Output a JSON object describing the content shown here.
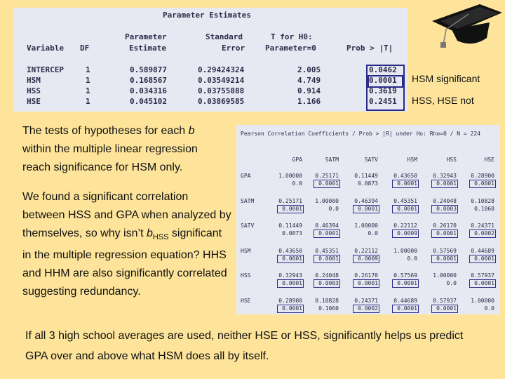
{
  "param": {
    "title": "Parameter Estimates",
    "headers": {
      "variable": "Variable",
      "df": "DF",
      "est1": "Parameter",
      "est2": "Estimate",
      "se1": "Standard",
      "se2": "Error",
      "t1": "T for H0:",
      "t2": "Parameter=0",
      "p": "Prob > |T|"
    },
    "rows": [
      {
        "var": "INTERCEP",
        "df": "1",
        "est": "0.589877",
        "se": "0.29424324",
        "t": "2.005",
        "p": "0.0462"
      },
      {
        "var": "HSM",
        "df": "1",
        "est": "0.168567",
        "se": "0.03549214",
        "t": "4.749",
        "p": "0.0001"
      },
      {
        "var": "HSS",
        "df": "1",
        "est": "0.034316",
        "se": "0.03755888",
        "t": "0.914",
        "p": "0.3619"
      },
      {
        "var": "HSE",
        "df": "1",
        "est": "0.045102",
        "se": "0.03869585",
        "t": "1.166",
        "p": "0.2451"
      }
    ]
  },
  "notes": {
    "hsm": "HSM significant",
    "hss": "HSS, HSE not"
  },
  "para1": {
    "pre": "The tests of hypotheses for each ",
    "b": "b",
    "post": " within the multiple linear regression reach significance for HSM only."
  },
  "para2": {
    "pre": "We found a significant correlation between HSS and GPA when analyzed by themselves, so why isn’t ",
    "b": "b",
    "sub": "HSS",
    "post": " significant in the multiple regression equation?  HHS and HHM are also significantly correlated suggesting redundancy."
  },
  "corr": {
    "title": "Pearson Correlation Coefficients / Prob > |R| under Ho: Rho=0 / N = 224",
    "cols": [
      "GPA",
      "SATM",
      "SATV",
      "HSM",
      "HSS",
      "HSE"
    ],
    "rows": [
      {
        "name": "GPA",
        "r": [
          "1.00000",
          "0.25171",
          "0.11449",
          "0.43650",
          "0.32943",
          "0.28900"
        ],
        "p": [
          "0.0",
          "0.0001",
          "0.0873",
          "0.0001",
          "0.0001",
          "0.0001"
        ]
      },
      {
        "name": "SATM",
        "r": [
          "0.25171",
          "1.00000",
          "0.46394",
          "0.45351",
          "0.24048",
          "0.10828"
        ],
        "p": [
          "0.0001",
          "0.0",
          "0.0001",
          "0.0001",
          "0.0003",
          "0.1060"
        ]
      },
      {
        "name": "SATV",
        "r": [
          "0.11449",
          "0.46394",
          "1.00000",
          "0.22112",
          "0.26170",
          "0.24371"
        ],
        "p": [
          "0.0873",
          "0.0001",
          "0.0",
          "0.0009",
          "0.0001",
          "0.0002"
        ]
      },
      {
        "name": "HSM",
        "r": [
          "0.43650",
          "0.45351",
          "0.22112",
          "1.00000",
          "0.57569",
          "0.44689"
        ],
        "p": [
          "0.0001",
          "0.0001",
          "0.0009",
          "0.0",
          "0.0001",
          "0.0001"
        ]
      },
      {
        "name": "HSS",
        "r": [
          "0.32943",
          "0.24048",
          "0.26170",
          "0.57569",
          "1.00000",
          "0.57937"
        ],
        "p": [
          "0.0001",
          "0.0003",
          "0.0001",
          "0.0001",
          "0.0",
          "0.0001"
        ]
      },
      {
        "name": "HSE",
        "r": [
          "0.28900",
          "0.10828",
          "0.24371",
          "0.44689",
          "0.57937",
          "1.00000"
        ],
        "p": [
          "0.0001",
          "0.1060",
          "0.0002",
          "0.0001",
          "0.0001",
          "0.0"
        ]
      }
    ]
  },
  "caption": "If all 3 high school averages are used, neither HSE or HSS, significantly  helps us predict GPA over and above what HSM does all by itself.",
  "icons": {
    "decor": "graduation-cap-icon"
  },
  "colors": {
    "background": "#fde49a",
    "panel": "#e6e9f1",
    "highlight": "#2a2a8a"
  }
}
